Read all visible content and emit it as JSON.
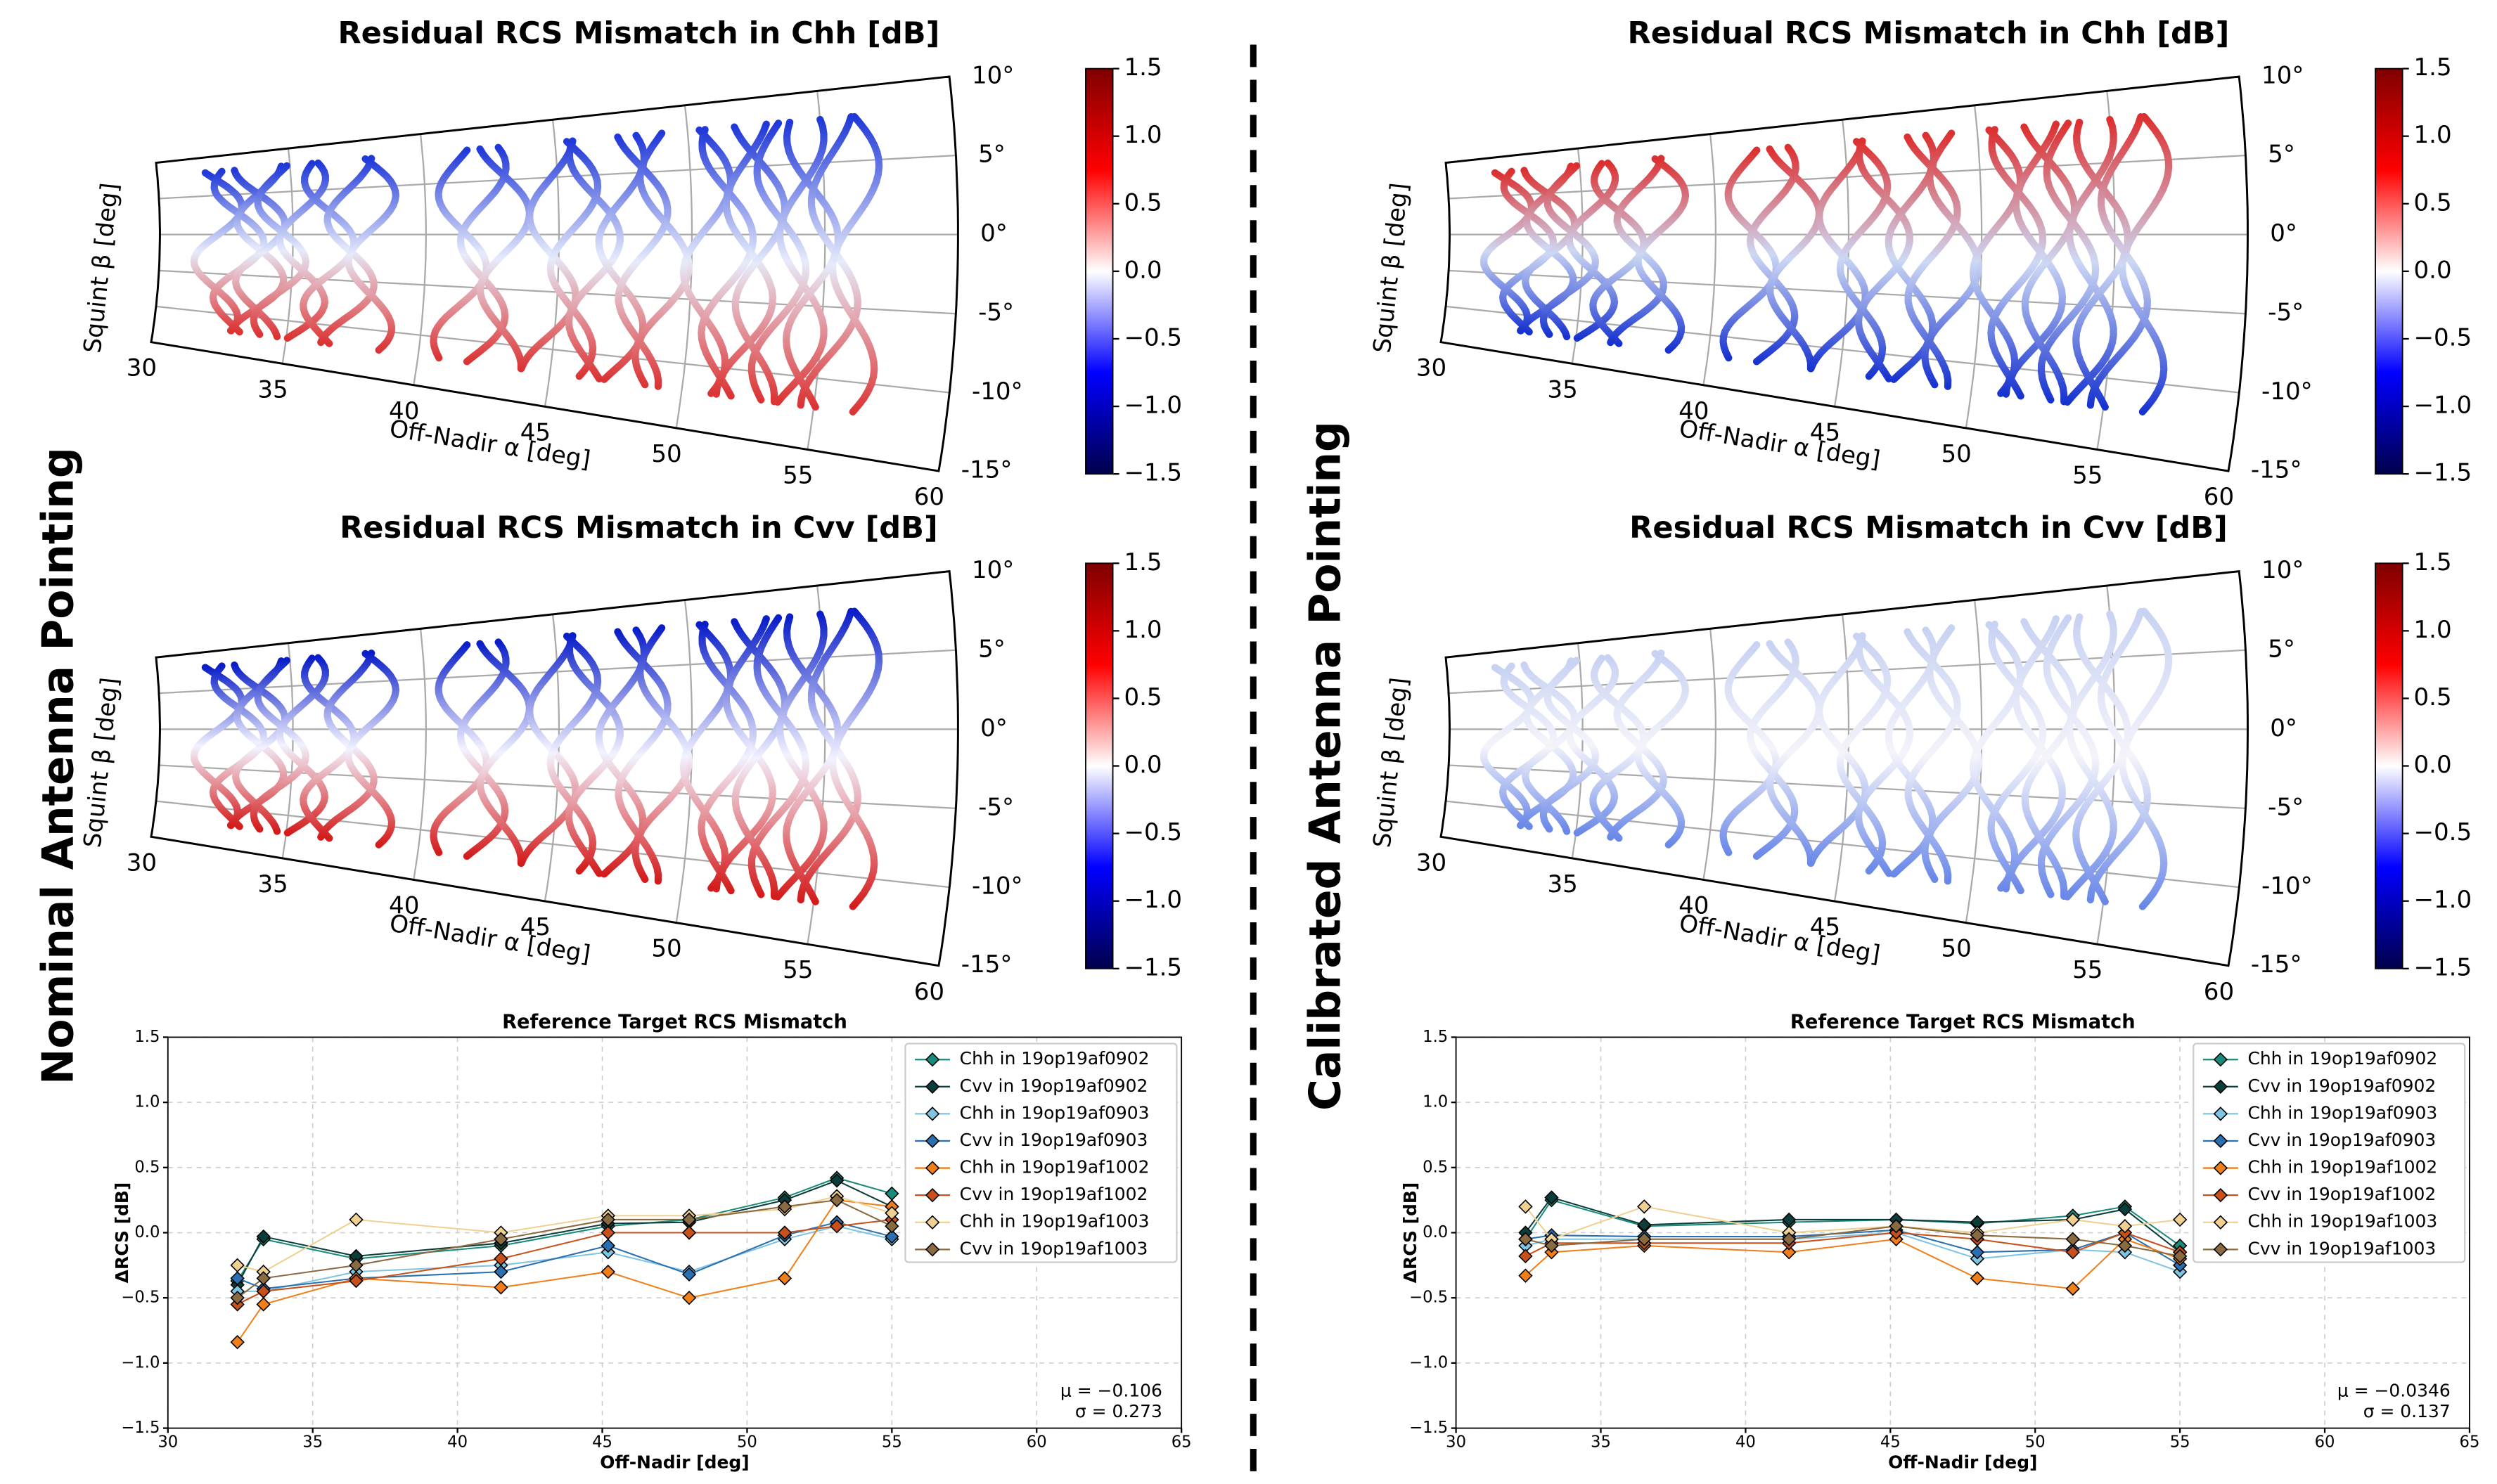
{
  "row_labels": [
    "Nominal Antenna Pointing",
    "Calibrated Antenna Pointing"
  ],
  "chart_data": [
    {
      "type": "polar-track",
      "title": "Residual RCS Mismatch in Chh [dB]",
      "xlabel": "Off-Nadir α [deg]",
      "ylabel": "Squint β [deg]",
      "xlim": [
        30,
        60
      ],
      "xticks": [
        30,
        35,
        40,
        45,
        50,
        55,
        60
      ],
      "ylim": [
        -15,
        10
      ],
      "yticks": [
        {
          "value": 10,
          "label": "10°"
        },
        {
          "value": 5,
          "label": "5°"
        },
        {
          "value": 0,
          "label": "0°"
        },
        {
          "value": -5,
          "label": "-5°"
        },
        {
          "value": -10,
          "label": "-10°"
        },
        {
          "value": -15,
          "label": "-15°"
        }
      ],
      "clim": [
        -1.5,
        1.5
      ],
      "cticks": [
        1.5,
        {
          "value": 1.0,
          "label": "1.0"
        },
        0.5,
        {
          "value": 0,
          "label": "0.0"
        },
        {
          "value": -0.5,
          "label": "−0.5"
        },
        {
          "value": -1.0,
          "label": "−1.0"
        },
        {
          "value": -1.5,
          "label": "−1.5"
        }
      ],
      "colormap": [
        "#00004c",
        "#0000ff",
        "#ffffff",
        "#ff0000",
        "#7f0000"
      ]
    },
    {
      "type": "polar-track",
      "title": "Residual RCS Mismatch in Cvv [dB]",
      "xlabel": "Off-Nadir α [deg]",
      "ylabel": "Squint β [deg]",
      "xlim": [
        30,
        60
      ],
      "xticks": [
        30,
        35,
        40,
        45,
        50,
        55,
        60
      ],
      "ylim": [
        -15,
        10
      ],
      "yticks": [
        {
          "value": 10,
          "label": "10°"
        },
        {
          "value": 5,
          "label": "5°"
        },
        {
          "value": 0,
          "label": "0°"
        },
        {
          "value": -5,
          "label": "-5°"
        },
        {
          "value": -10,
          "label": "-10°"
        },
        {
          "value": -15,
          "label": "-15°"
        }
      ],
      "clim": [
        -1.5,
        1.5
      ],
      "cticks": [
        1.5,
        {
          "value": 1.0,
          "label": "1.0"
        },
        0.5,
        {
          "value": 0,
          "label": "0.0"
        },
        {
          "value": -0.5,
          "label": "−0.5"
        },
        {
          "value": -1.0,
          "label": "−1.0"
        },
        {
          "value": -1.5,
          "label": "−1.5"
        }
      ],
      "colormap": [
        "#00004c",
        "#0000ff",
        "#ffffff",
        "#ff0000",
        "#7f0000"
      ]
    },
    {
      "type": "line",
      "title": "Reference Target RCS Mismatch",
      "xlabel": "Off-Nadir [deg]",
      "ylabel": "ΔRCS [dB]",
      "xlim": [
        30,
        65
      ],
      "xticks": [
        30,
        35,
        40,
        45,
        50,
        55,
        60,
        65
      ],
      "ylim": [
        -1.5,
        1.5
      ],
      "yticks": [
        1.5,
        {
          "value": 1.0,
          "label": "1.0"
        },
        0.5,
        {
          "value": 0,
          "label": "0.0"
        },
        {
          "value": -0.5,
          "label": "−0.5"
        },
        {
          "value": -1.0,
          "label": "−1.0"
        },
        {
          "value": -1.5,
          "label": "−1.5"
        }
      ],
      "grid": true,
      "legend": "upper right",
      "x": [
        32.4,
        33.3,
        36.5,
        41.5,
        45.2,
        48.0,
        51.3,
        53.1,
        55.0
      ],
      "series": [
        {
          "name": "Chh in 19op19af0902",
          "color": "#1a8a7a",
          "values": [
            -0.37,
            -0.05,
            -0.2,
            -0.1,
            0.05,
            0.1,
            0.27,
            0.42,
            0.3
          ]
        },
        {
          "name": "Cvv in 19op19af0902",
          "color": "#0b3d3a",
          "values": [
            -0.4,
            -0.03,
            -0.18,
            -0.08,
            0.07,
            0.08,
            0.25,
            0.4,
            0.2
          ]
        },
        {
          "name": "Chh in 19op19af0903",
          "color": "#7fc4e0",
          "values": [
            -0.45,
            -0.45,
            -0.3,
            -0.25,
            -0.15,
            -0.3,
            -0.05,
            0.05,
            -0.05
          ]
        },
        {
          "name": "Cvv in 19op19af0903",
          "color": "#2a6fb0",
          "values": [
            -0.35,
            -0.43,
            -0.35,
            -0.3,
            -0.1,
            -0.32,
            -0.02,
            0.08,
            -0.03
          ]
        },
        {
          "name": "Chh in 19op19af1002",
          "color": "#f07f1a",
          "values": [
            -0.84,
            -0.55,
            -0.35,
            -0.42,
            -0.3,
            -0.5,
            -0.35,
            0.25,
            0.2
          ]
        },
        {
          "name": "Cvv in 19op19af1002",
          "color": "#c8501a",
          "values": [
            -0.55,
            -0.45,
            -0.37,
            -0.2,
            0.0,
            0.0,
            0.0,
            0.05,
            0.1
          ]
        },
        {
          "name": "Chh in 19op19af1003",
          "color": "#f0d090",
          "values": [
            -0.25,
            -0.3,
            0.1,
            0.0,
            0.13,
            0.13,
            0.18,
            0.28,
            0.15
          ]
        },
        {
          "name": "Cvv in 19op19af1003",
          "color": "#8a6a40",
          "values": [
            -0.5,
            -0.35,
            -0.25,
            -0.05,
            0.1,
            0.1,
            0.2,
            0.25,
            0.05
          ]
        }
      ],
      "annotations": [
        "μ = −0.106",
        "σ = 0.273"
      ]
    },
    {
      "type": "polar-track",
      "title": "Residual RCS Mismatch in Chh [dB]",
      "xlabel": "Off-Nadir α [deg]",
      "ylabel": "Squint β [deg]",
      "xlim": [
        30,
        60
      ],
      "xticks": [
        30,
        35,
        40,
        45,
        50,
        55,
        60
      ],
      "ylim": [
        -15,
        10
      ],
      "yticks": [
        {
          "value": 10,
          "label": "10°"
        },
        {
          "value": 5,
          "label": "5°"
        },
        {
          "value": 0,
          "label": "0°"
        },
        {
          "value": -5,
          "label": "-5°"
        },
        {
          "value": -10,
          "label": "-10°"
        },
        {
          "value": -15,
          "label": "-15°"
        }
      ],
      "clim": [
        -1.5,
        1.5
      ],
      "cticks": [
        1.5,
        {
          "value": 1.0,
          "label": "1.0"
        },
        0.5,
        {
          "value": 0,
          "label": "0.0"
        },
        {
          "value": -0.5,
          "label": "−0.5"
        },
        {
          "value": -1.0,
          "label": "−1.0"
        },
        {
          "value": -1.5,
          "label": "−1.5"
        }
      ],
      "colormap": [
        "#00004c",
        "#0000ff",
        "#ffffff",
        "#ff0000",
        "#7f0000"
      ]
    },
    {
      "type": "polar-track",
      "title": "Residual RCS Mismatch in Cvv [dB]",
      "xlabel": "Off-Nadir α [deg]",
      "ylabel": "Squint β [deg]",
      "xlim": [
        30,
        60
      ],
      "xticks": [
        30,
        35,
        40,
        45,
        50,
        55,
        60
      ],
      "ylim": [
        -15,
        10
      ],
      "yticks": [
        {
          "value": 10,
          "label": "10°"
        },
        {
          "value": 5,
          "label": "5°"
        },
        {
          "value": 0,
          "label": "0°"
        },
        {
          "value": -5,
          "label": "-5°"
        },
        {
          "value": -10,
          "label": "-10°"
        },
        {
          "value": -15,
          "label": "-15°"
        }
      ],
      "clim": [
        -1.5,
        1.5
      ],
      "cticks": [
        1.5,
        {
          "value": 1.0,
          "label": "1.0"
        },
        0.5,
        {
          "value": 0,
          "label": "0.0"
        },
        {
          "value": -0.5,
          "label": "−0.5"
        },
        {
          "value": -1.0,
          "label": "−1.0"
        },
        {
          "value": -1.5,
          "label": "−1.5"
        }
      ],
      "colormap": [
        "#00004c",
        "#0000ff",
        "#ffffff",
        "#ff0000",
        "#7f0000"
      ]
    },
    {
      "type": "line",
      "title": "Reference Target RCS Mismatch",
      "xlabel": "Off-Nadir [deg]",
      "ylabel": "ΔRCS [dB]",
      "xlim": [
        30,
        65
      ],
      "xticks": [
        30,
        35,
        40,
        45,
        50,
        55,
        60,
        65
      ],
      "ylim": [
        -1.5,
        1.5
      ],
      "yticks": [
        1.5,
        {
          "value": 1.0,
          "label": "1.0"
        },
        0.5,
        {
          "value": 0,
          "label": "0.0"
        },
        {
          "value": -0.5,
          "label": "−0.5"
        },
        {
          "value": -1.0,
          "label": "−1.0"
        },
        {
          "value": -1.5,
          "label": "−1.5"
        }
      ],
      "grid": true,
      "legend": "upper right",
      "x": [
        32.4,
        33.3,
        36.5,
        41.5,
        45.2,
        48.0,
        51.3,
        53.1,
        55.0
      ],
      "series": [
        {
          "name": "Chh in 19op19af0902",
          "color": "#1a8a7a",
          "values": [
            -0.05,
            0.25,
            0.05,
            0.08,
            0.1,
            0.07,
            0.13,
            0.2,
            -0.1
          ]
        },
        {
          "name": "Cvv in 19op19af0902",
          "color": "#0b3d3a",
          "values": [
            0.0,
            0.27,
            0.06,
            0.1,
            0.1,
            0.08,
            0.1,
            0.18,
            -0.15
          ]
        },
        {
          "name": "Chh in 19op19af0903",
          "color": "#7fc4e0",
          "values": [
            -0.1,
            -0.05,
            -0.05,
            -0.05,
            0.0,
            -0.2,
            -0.13,
            -0.15,
            -0.3
          ]
        },
        {
          "name": "Cvv in 19op19af0903",
          "color": "#2a6fb0",
          "values": [
            -0.05,
            -0.02,
            -0.03,
            -0.03,
            0.02,
            -0.15,
            -0.13,
            0.0,
            -0.25
          ]
        },
        {
          "name": "Chh in 19op19af1002",
          "color": "#f07f1a",
          "values": [
            -0.33,
            -0.15,
            -0.1,
            -0.15,
            -0.05,
            -0.35,
            -0.43,
            -0.05,
            -0.2
          ]
        },
        {
          "name": "Cvv in 19op19af1002",
          "color": "#c8501a",
          "values": [
            -0.18,
            -0.08,
            -0.08,
            -0.08,
            0.0,
            -0.05,
            -0.15,
            0.0,
            -0.15
          ]
        },
        {
          "name": "Chh in 19op19af1003",
          "color": "#f0d090",
          "values": [
            0.2,
            -0.05,
            0.2,
            0.0,
            0.05,
            0.0,
            0.1,
            0.05,
            0.1
          ]
        },
        {
          "name": "Cvv in 19op19af1003",
          "color": "#8a6a40",
          "values": [
            -0.05,
            -0.1,
            -0.05,
            -0.05,
            0.05,
            -0.02,
            -0.05,
            -0.1,
            -0.18
          ]
        }
      ],
      "annotations": [
        "μ = −0.0346",
        "σ = 0.137"
      ]
    }
  ]
}
